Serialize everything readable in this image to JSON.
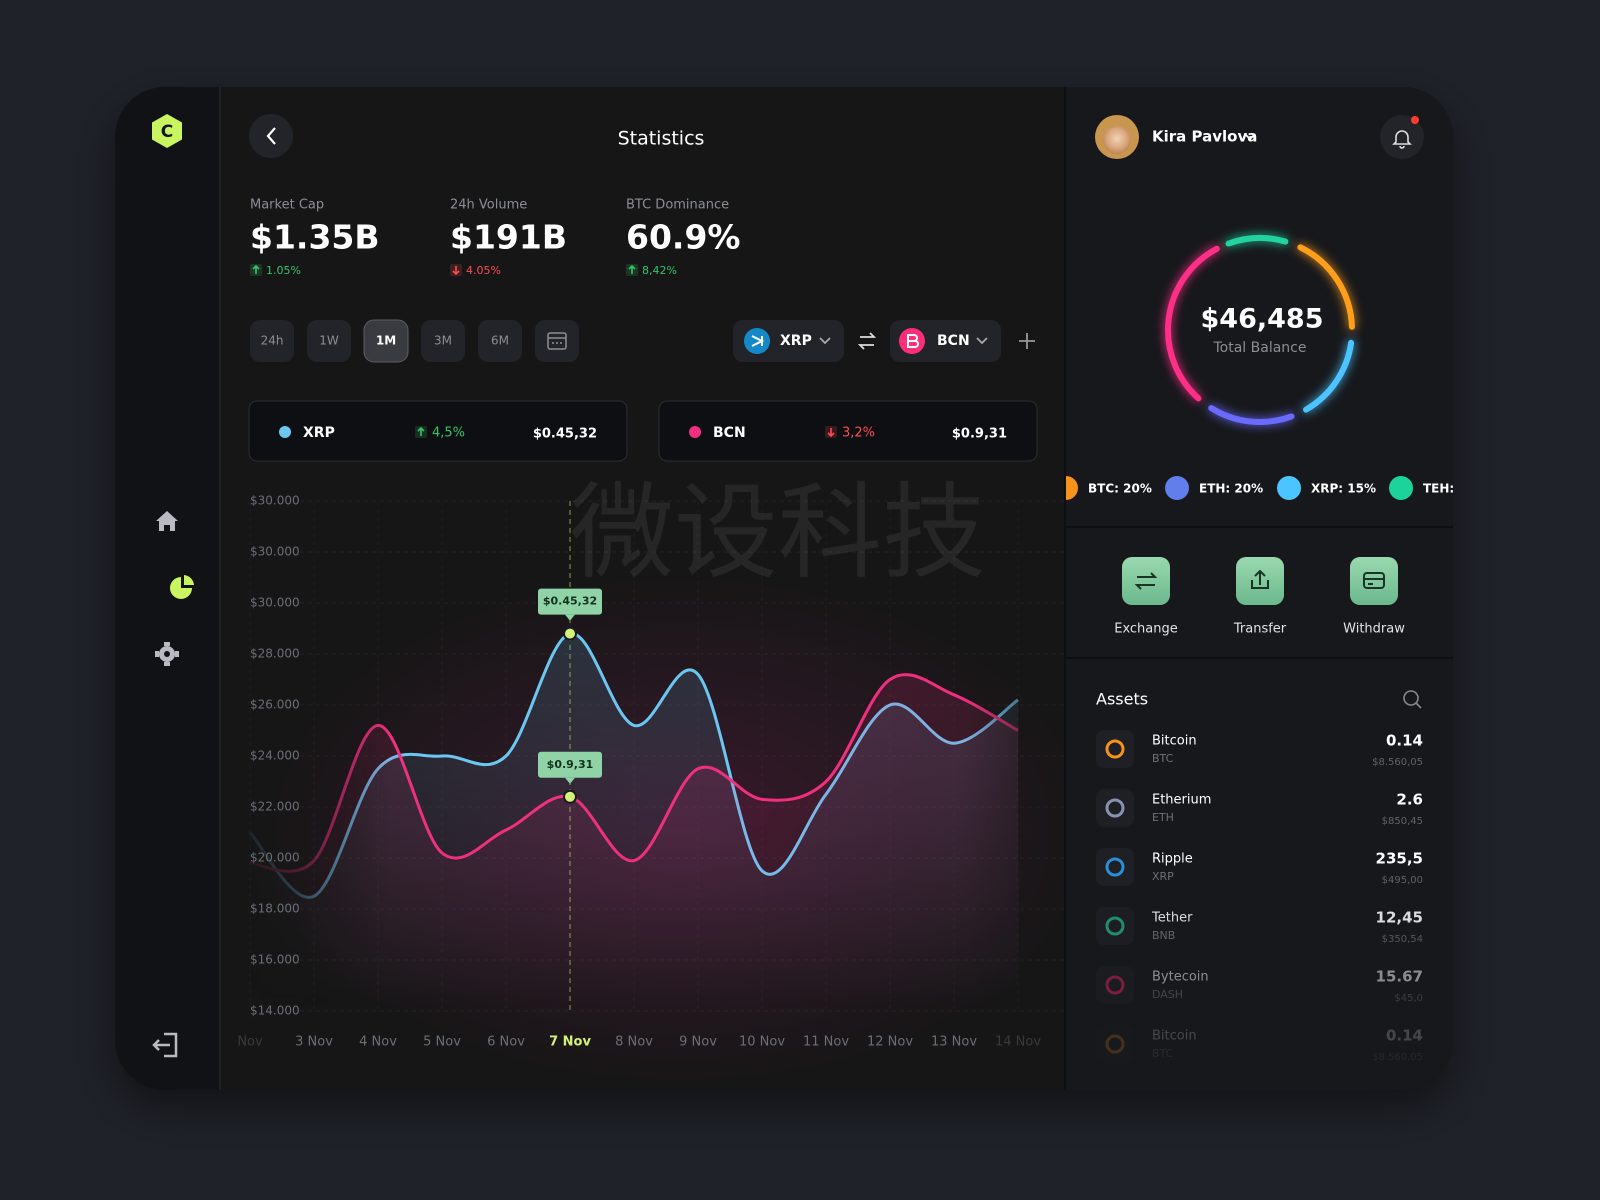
{
  "sidebar": {
    "logo": "C"
  },
  "header": {
    "title": "Statistics"
  },
  "stats": [
    {
      "label": "Market Cap",
      "value": "$1.35B",
      "change": "1.05%",
      "trend": "up"
    },
    {
      "label": "24h Volume",
      "value": "$191B",
      "change": "4.05%",
      "trend": "down"
    },
    {
      "label": "BTC Dominance",
      "value": "60.9%",
      "change": "8,42%",
      "trend": "up"
    }
  ],
  "periods": {
    "items": [
      "24h",
      "1W",
      "1M",
      "3M",
      "6M"
    ],
    "active": 2
  },
  "chart_data": {
    "type": "line",
    "categories": [
      "Nov",
      "3 Nov",
      "4 Nov",
      "5 Nov",
      "6 Nov",
      "7 Nov",
      "8 Nov",
      "9 Nov",
      "10 Nov",
      "11 Nov",
      "12 Nov",
      "13 Nov",
      "14 Nov"
    ],
    "series": [
      {
        "name": "XRP",
        "color": "#6cc6f2",
        "change": "4,5%",
        "trend": "up",
        "price": "$0.45,32",
        "values": [
          21000,
          18500,
          23500,
          24000,
          24000,
          28800,
          25200,
          27200,
          19500,
          22500,
          26000,
          24500,
          26200
        ]
      },
      {
        "name": "BCN",
        "color": "#f0307f",
        "change": "3,2%",
        "trend": "down",
        "price": "$0.9,31",
        "values": [
          19800,
          19900,
          25200,
          20200,
          21100,
          22400,
          19900,
          23500,
          22300,
          23000,
          27000,
          26400,
          25000
        ]
      }
    ],
    "ylim": [
      14000,
      34000
    ],
    "yticks": [
      {
        "value": 14000,
        "label": "$14.000"
      },
      {
        "value": 16000,
        "label": "$16.000"
      },
      {
        "value": 18000,
        "label": "$18.000"
      },
      {
        "value": 20000,
        "label": "$20.000"
      },
      {
        "value": 22000,
        "label": "$22.000"
      },
      {
        "value": 24000,
        "label": "$24.000"
      },
      {
        "value": 26000,
        "label": "$26.000"
      },
      {
        "value": 28000,
        "label": "$28.000"
      },
      {
        "value": 30000,
        "label": "$30.000"
      }
    ],
    "extra_ylabels": [
      "$30.000",
      "$30.000"
    ],
    "grid": true
  },
  "watermark": "微设科技",
  "profile": {
    "name": "Kira Pavlova"
  },
  "balance": {
    "value": "$46,485",
    "label": "Total Balance"
  },
  "allocation": [
    "BTC: 20%",
    "ETH: 20%",
    "XRP: 15%",
    "TEH:"
  ],
  "actions": [
    "Exchange",
    "Transfer",
    "Withdraw"
  ],
  "assets": {
    "title": "Assets",
    "items": [
      {
        "name": "Bitcoin",
        "ticker": "BTC",
        "amount": "0.14",
        "value": "$8.560,05"
      },
      {
        "name": "Etherium",
        "ticker": "ETH",
        "amount": "2.6",
        "value": "$850,45"
      },
      {
        "name": "Ripple",
        "ticker": "XRP",
        "amount": "235,5",
        "value": "$495,00"
      },
      {
        "name": "Tether",
        "ticker": "BNB",
        "amount": "12,45",
        "value": "$350,54"
      },
      {
        "name": "Bytecoin",
        "ticker": "DASH",
        "amount": "15.67",
        "value": "$45,0"
      },
      {
        "name": "Bitcoin",
        "ticker": "BTC",
        "amount": "0.14",
        "value": "$8.560,05"
      }
    ]
  }
}
